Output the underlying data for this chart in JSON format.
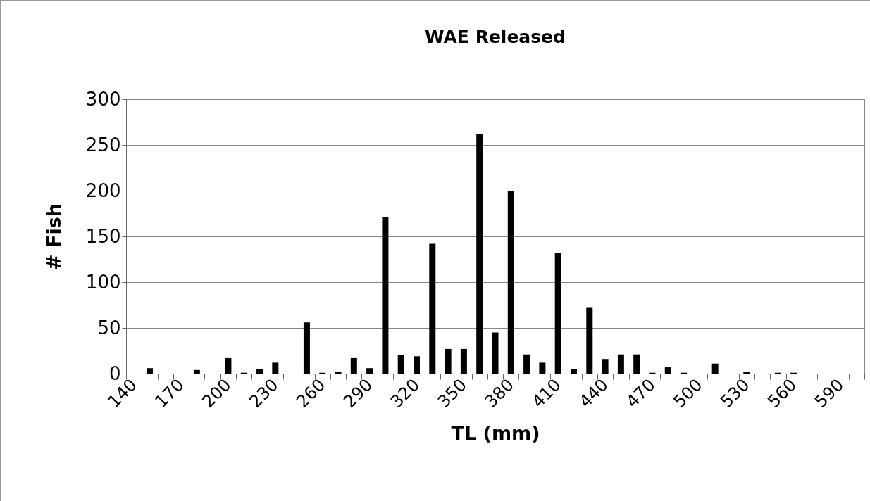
{
  "chart_data": {
    "type": "bar",
    "title": "WAE Released",
    "xlabel": "TL (mm)",
    "ylabel": "# Fish",
    "categories": [
      "140",
      null,
      null,
      "170",
      null,
      null,
      "200",
      null,
      null,
      "230",
      null,
      null,
      "260",
      null,
      null,
      "290",
      null,
      null,
      "320",
      null,
      null,
      "350",
      null,
      null,
      "380",
      null,
      null,
      "410",
      null,
      null,
      "440",
      null,
      null,
      "470",
      null,
      null,
      "500",
      null,
      null,
      "530",
      null,
      null,
      "560",
      null,
      null,
      "590",
      null
    ],
    "values": [
      0,
      6,
      0,
      0,
      4,
      0,
      17,
      1,
      5,
      12,
      0,
      56,
      1,
      2,
      17,
      6,
      171,
      20,
      19,
      142,
      27,
      27,
      262,
      45,
      200,
      21,
      12,
      132,
      5,
      72,
      16,
      21,
      21,
      1,
      7,
      1,
      0,
      11,
      0,
      2,
      0,
      1,
      1,
      0,
      0,
      0,
      0
    ],
    "color": "#000000",
    "ylim": [
      0,
      300
    ],
    "yticks": [
      0,
      50,
      100,
      150,
      200,
      250,
      300
    ],
    "grid": "y"
  }
}
